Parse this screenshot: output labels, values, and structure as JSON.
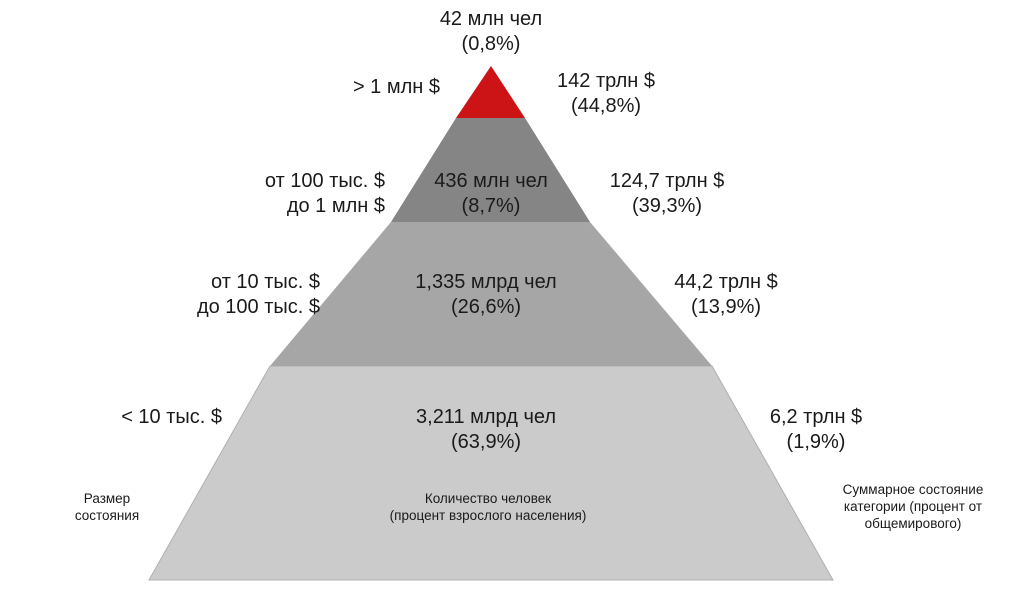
{
  "tiers": [
    {
      "name": "top",
      "color": "#cc1417",
      "size_range": [
        "> 1 млн $"
      ],
      "people": [
        "42 млн чел",
        "(0,8%)"
      ],
      "wealth": [
        "142 трлн $",
        "(44,8%)"
      ]
    },
    {
      "name": "upper",
      "color": "#858585",
      "size_range": [
        "от 100 тыс. $",
        "до 1 млн $"
      ],
      "people": [
        "436 млн чел",
        "(8,7%)"
      ],
      "wealth": [
        "124,7 трлн $",
        "(39,3%)"
      ]
    },
    {
      "name": "middle",
      "color": "#a6a6a6",
      "size_range": [
        "от 10 тыс. $",
        "до 100 тыс. $"
      ],
      "people": [
        "1,335 млрд чел",
        "(26,6%)"
      ],
      "wealth": [
        "44,2 трлн $",
        "(13,9%)"
      ]
    },
    {
      "name": "base",
      "color": "#cbcbcb",
      "size_range": [
        "< 10 тыс. $"
      ],
      "people": [
        "3,211 млрд чел",
        "(63,9%)"
      ],
      "wealth": [
        "6,2 трлн $",
        "(1,9%)"
      ]
    }
  ],
  "captions": {
    "size": [
      "Размер",
      "состояния"
    ],
    "people": [
      "Количество человек",
      "(процент взрослого населения)"
    ],
    "wealth": [
      "Суммарное состояние",
      "категории (процент от",
      "общемирового)"
    ]
  }
}
